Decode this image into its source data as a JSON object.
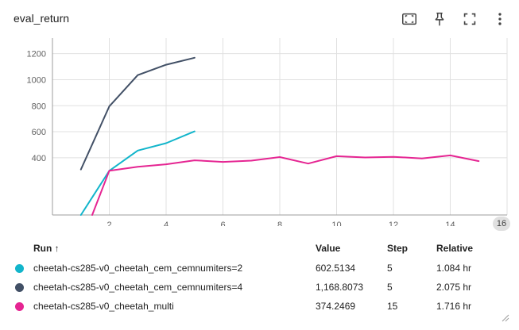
{
  "card": {
    "title": "eval_return"
  },
  "toolbar": {
    "icons": [
      "fit-domain-icon",
      "pin-icon",
      "fullscreen-icon",
      "more-vert-icon"
    ]
  },
  "scroll_indicator": "16",
  "chart_data": {
    "type": "line",
    "xlim": [
      0,
      16
    ],
    "ylim": [
      -40,
      1320
    ],
    "xticks": [
      2,
      4,
      6,
      8,
      10,
      12,
      14
    ],
    "yticks": [
      400,
      600,
      800,
      1000,
      1200
    ],
    "grid": true,
    "series": [
      {
        "name": "cheetah-cs285-v0_cheetah_cem_cemnumiters=2",
        "color": "#12b5cb",
        "x": [
          1,
          2,
          3,
          4,
          5
        ],
        "y": [
          -40,
          300,
          455,
          512,
          602.5
        ]
      },
      {
        "name": "cheetah-cs285-v0_cheetah_cem_cemnumiters=4",
        "color": "#425066",
        "x": [
          1,
          2,
          3,
          4,
          5
        ],
        "y": [
          310,
          795,
          1035,
          1115,
          1168.8
        ]
      },
      {
        "name": "cheetah-cs285-v0_cheetah_multi",
        "color": "#e52592",
        "x": [
          1.4,
          2,
          3,
          4,
          5,
          6,
          7,
          8,
          9,
          10,
          11,
          12,
          13,
          14,
          15
        ],
        "y": [
          -40,
          300,
          330,
          350,
          380,
          368,
          378,
          405,
          355,
          412,
          402,
          407,
          395,
          418,
          374.2
        ]
      }
    ]
  },
  "table": {
    "headers": {
      "run": "Run ↑",
      "value": "Value",
      "step": "Step",
      "relative": "Relative"
    },
    "rows": [
      {
        "color": "#12b5cb",
        "run": "cheetah-cs285-v0_cheetah_cem_cemnumiters=2",
        "value": "602.5134",
        "step": "5",
        "relative": "1.084 hr"
      },
      {
        "color": "#425066",
        "run": "cheetah-cs285-v0_cheetah_cem_cemnumiters=4",
        "value": "1,168.8073",
        "step": "5",
        "relative": "2.075 hr"
      },
      {
        "color": "#e52592",
        "run": "cheetah-cs285-v0_cheetah_multi",
        "value": "374.2469",
        "step": "15",
        "relative": "1.716 hr"
      }
    ]
  }
}
